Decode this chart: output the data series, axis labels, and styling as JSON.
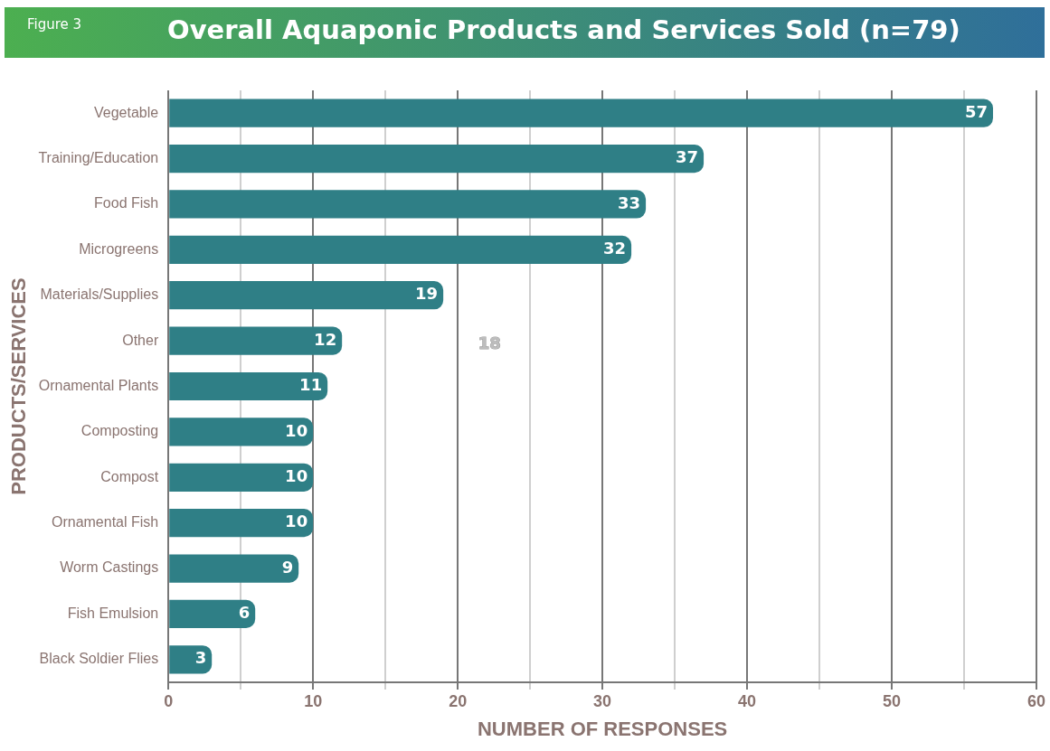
{
  "chart_data": {
    "type": "bar",
    "orientation": "horizontal",
    "title": "Overall Aquaponic Products and Services Sold (n=79)",
    "subtitle": "Figure 3",
    "xlabel": "NUMBER OF RESPONSES",
    "ylabel": "PRODUCTS/SERVICES",
    "categories": [
      "Vegetable",
      "Training/Education",
      "Food Fish",
      "Microgreens",
      "Materials/Supplies",
      "Other",
      "Ornamental Plants",
      "Composting",
      "Compost",
      "Ornamental Fish",
      "Worm Castings",
      "Fish Emulsion",
      "Black Soldier Flies"
    ],
    "values": [
      57,
      37,
      33,
      32,
      19,
      12,
      11,
      10,
      10,
      10,
      9,
      6,
      3
    ],
    "color": "#2f7f86",
    "xlim": [
      0,
      60
    ],
    "xticks": [
      0,
      {
        "value": 5,
        "label": null
      },
      10,
      {
        "value": 15,
        "label": null
      },
      20,
      {
        "value": 25,
        "label": null
      },
      30,
      {
        "value": 35,
        "label": null
      },
      40,
      {
        "value": 45,
        "label": null
      },
      50,
      {
        "value": 55,
        "label": null
      },
      60
    ],
    "grid": "x",
    "data_labels": true,
    "legend": false,
    "annotations": [
      "18"
    ]
  }
}
